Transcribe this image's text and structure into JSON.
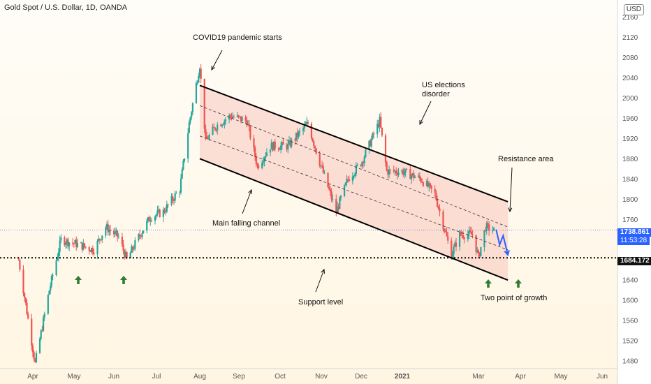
{
  "header": {
    "title": "Gold Spot / U.S. Dollar, 1D, OANDA",
    "currency_badge": "USD"
  },
  "price_tags": {
    "current_price": "1738.861",
    "countdown": "11:53:28",
    "support_price": "1684.172"
  },
  "annotations": {
    "covid": "COVID19 pandemic starts",
    "elections_line1": "US elections",
    "elections_line2": "disorder",
    "resistance": "Resistance area",
    "channel": "Main falling channel",
    "support": "Support level",
    "growth": "Two point of growth"
  },
  "colors": {
    "up": "#26a69a",
    "down": "#ef5350",
    "channel_fill": "#f7c6bd",
    "forecast": "#2962ff",
    "growth_arrow": "#2e7d32",
    "price_line": "#2962ff"
  },
  "chart_data": {
    "type": "candlestick",
    "instrument": "XAU/USD",
    "timeframe": "1D",
    "x_tick_labels": [
      "Apr",
      "May",
      "Jun",
      "Jul",
      "Aug",
      "Sep",
      "Oct",
      "Nov",
      "Dec",
      "2021",
      "Mar",
      "Apr",
      "May",
      "Jun"
    ],
    "y_tick_labels": [
      1480,
      1520,
      1560,
      1600,
      1640,
      1680,
      1720,
      1760,
      1800,
      1840,
      1880,
      1920,
      1960,
      2000,
      2040,
      2080,
      2120,
      2160
    ],
    "ylim": [
      1465,
      2180
    ],
    "price_path": [
      {
        "date": "2020-03-05",
        "price": 1680
      },
      {
        "date": "2020-03-19",
        "price": 1475
      },
      {
        "date": "2020-03-31",
        "price": 1620
      },
      {
        "date": "2020-04-10",
        "price": 1720
      },
      {
        "date": "2020-04-25",
        "price": 1710
      },
      {
        "date": "2020-05-08",
        "price": 1700
      },
      {
        "date": "2020-05-18",
        "price": 1745
      },
      {
        "date": "2020-05-29",
        "price": 1725
      },
      {
        "date": "2020-06-05",
        "price": 1680
      },
      {
        "date": "2020-06-15",
        "price": 1725
      },
      {
        "date": "2020-06-25",
        "price": 1765
      },
      {
        "date": "2020-07-06",
        "price": 1775
      },
      {
        "date": "2020-07-20",
        "price": 1820
      },
      {
        "date": "2020-07-28",
        "price": 1950
      },
      {
        "date": "2020-08-06",
        "price": 2065
      },
      {
        "date": "2020-08-11",
        "price": 1915
      },
      {
        "date": "2020-08-20",
        "price": 1945
      },
      {
        "date": "2020-09-01",
        "price": 1965
      },
      {
        "date": "2020-09-15",
        "price": 1955
      },
      {
        "date": "2020-09-24",
        "price": 1865
      },
      {
        "date": "2020-10-05",
        "price": 1905
      },
      {
        "date": "2020-10-20",
        "price": 1905
      },
      {
        "date": "2020-11-06",
        "price": 1950
      },
      {
        "date": "2020-11-15",
        "price": 1880
      },
      {
        "date": "2020-11-30",
        "price": 1775
      },
      {
        "date": "2020-12-10",
        "price": 1840
      },
      {
        "date": "2020-12-22",
        "price": 1875
      },
      {
        "date": "2021-01-06",
        "price": 1955
      },
      {
        "date": "2021-01-12",
        "price": 1855
      },
      {
        "date": "2021-01-25",
        "price": 1855
      },
      {
        "date": "2021-02-10",
        "price": 1840
      },
      {
        "date": "2021-02-22",
        "price": 1810
      },
      {
        "date": "2021-03-08",
        "price": 1690
      },
      {
        "date": "2021-03-15",
        "price": 1730
      },
      {
        "date": "2021-03-26",
        "price": 1730
      },
      {
        "date": "2021-03-31",
        "price": 1685
      },
      {
        "date": "2021-04-06",
        "price": 1745
      },
      {
        "date": "2021-04-13",
        "price": 1738
      }
    ],
    "channel": {
      "upper": [
        {
          "date": "2020-08-06",
          "price": 2025
        },
        {
          "date": "2021-04-25",
          "price": 1795
        }
      ],
      "lower": [
        {
          "date": "2020-08-06",
          "price": 1880
        },
        {
          "date": "2021-04-25",
          "price": 1640
        }
      ],
      "mid_dashed_1": [
        {
          "date": "2020-08-06",
          "price": 1985
        },
        {
          "date": "2021-04-25",
          "price": 1745
        }
      ],
      "mid_dashed_2": [
        {
          "date": "2020-08-06",
          "price": 1925
        },
        {
          "date": "2021-04-25",
          "price": 1700
        }
      ]
    },
    "support_level": 1684.172,
    "current_price": 1738.861,
    "forecast_path": [
      {
        "date": "2021-04-15",
        "price": 1740
      },
      {
        "date": "2021-04-18",
        "price": 1710
      },
      {
        "date": "2021-04-21",
        "price": 1728
      },
      {
        "date": "2021-04-25",
        "price": 1690
      }
    ]
  }
}
